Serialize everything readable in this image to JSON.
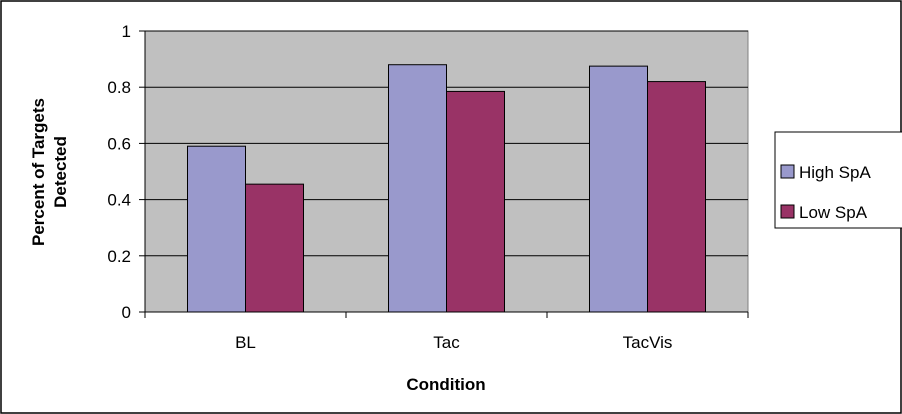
{
  "chart_data": {
    "type": "bar",
    "title": "",
    "xlabel": "Condition",
    "ylabel_lines": [
      "Percent of Targets",
      "Detected"
    ],
    "categories": [
      "BL",
      "Tac",
      "TacVis"
    ],
    "series": [
      {
        "name": "High SpA",
        "values": [
          0.59,
          0.88,
          0.875
        ],
        "color": "#9999cc"
      },
      {
        "name": "Low SpA",
        "values": [
          0.455,
          0.785,
          0.82
        ],
        "color": "#993366"
      }
    ],
    "ylim": [
      0,
      1
    ],
    "yticks": [
      "0",
      "0.2",
      "0.4",
      "0.6",
      "0.8",
      "1"
    ],
    "ytick_values": [
      0,
      0.2,
      0.4,
      0.6,
      0.8,
      1
    ],
    "grid": true,
    "legend_position": "right",
    "plot_background": "#c0c0c0"
  }
}
